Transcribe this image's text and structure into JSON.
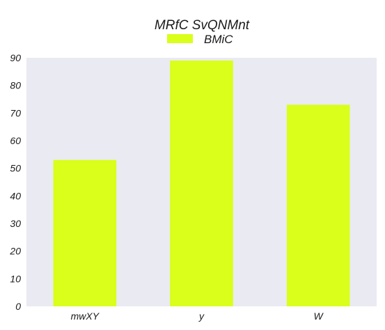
{
  "chart_data": {
    "type": "bar",
    "title": "MRfC SvQNMnt",
    "categories": [
      "mwXY",
      "y",
      "W"
    ],
    "series": [
      {
        "name": "BMiC",
        "values": [
          53,
          89,
          73
        ],
        "color": "#d9ff1a"
      }
    ],
    "xlabel": "",
    "ylabel": "",
    "ylim": [
      0,
      90
    ],
    "yticks": [
      0,
      10,
      20,
      30,
      40,
      50,
      60,
      70,
      80,
      90
    ],
    "grid": false,
    "legend_position": "top-center",
    "plot_background": "#eaeaf2"
  }
}
